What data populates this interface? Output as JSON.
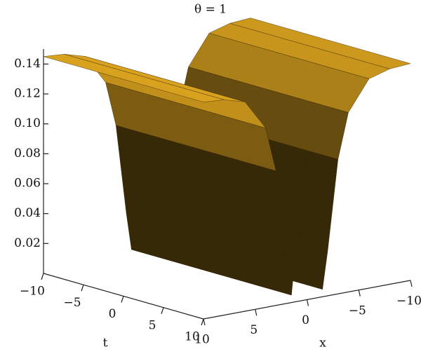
{
  "chart_data": {
    "type": "surface",
    "title": "θ = 1",
    "t_label": "t",
    "x_label": "x",
    "x": [
      -10,
      -8,
      -6,
      -4,
      -3,
      -2,
      -1.5,
      -1,
      0,
      1,
      1.5,
      2,
      3,
      4,
      6,
      8,
      10
    ],
    "values": [
      0.145,
      0.144,
      0.14,
      0.12,
      0.09,
      0.03,
      0.005,
      0.04,
      0.095,
      0.04,
      0.005,
      0.03,
      0.09,
      0.12,
      0.14,
      0.144,
      0.145
    ],
    "color": "#d9a21e",
    "xlim": [
      -10,
      10
    ],
    "tlim": [
      -10,
      10
    ],
    "zlim": [
      0,
      0.15
    ],
    "xticks": [
      {
        "value": 10,
        "label": "10"
      },
      {
        "value": 5,
        "label": "5"
      },
      {
        "value": 0,
        "label": "0"
      },
      {
        "value": -5,
        "label": "−5"
      },
      {
        "value": -10,
        "label": "−10"
      }
    ],
    "tticks": [
      {
        "value": -10,
        "label": "−10"
      },
      {
        "value": -5,
        "label": "−5"
      },
      {
        "value": 0,
        "label": "0"
      },
      {
        "value": 5,
        "label": "5"
      },
      {
        "value": 10,
        "label": "10"
      }
    ],
    "zticks": [
      0.02,
      0.04,
      0.06,
      0.08,
      {
        "value": 0.1,
        "label": "0.10"
      },
      0.12,
      0.14
    ]
  }
}
